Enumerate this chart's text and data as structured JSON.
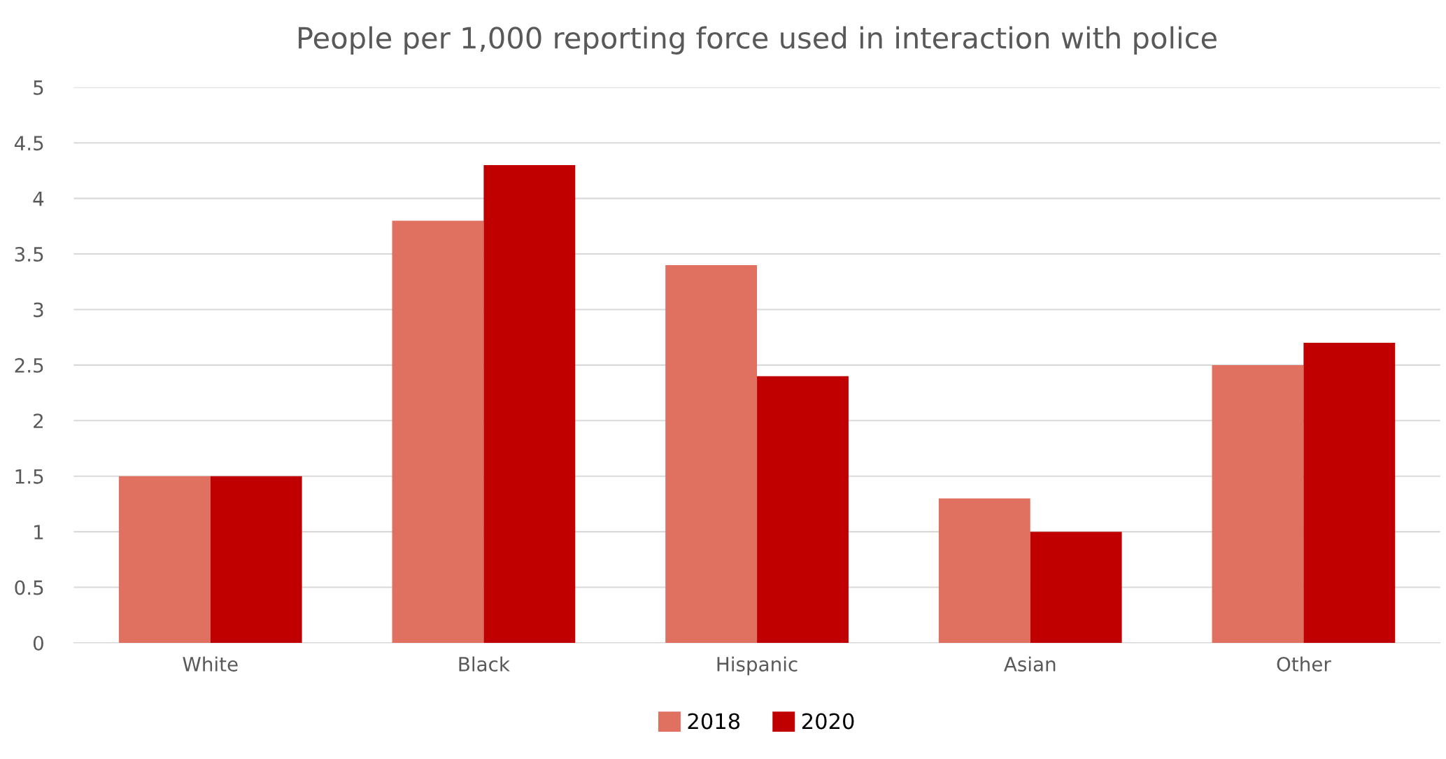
{
  "chart_data": {
    "type": "bar",
    "title": "People per 1,000 reporting force used in interaction with police",
    "categories": [
      "White",
      "Black",
      "Hispanic",
      "Asian",
      "Other"
    ],
    "series": [
      {
        "name": "2018",
        "color": "#e07060",
        "values": [
          1.5,
          3.8,
          3.4,
          1.3,
          2.5
        ]
      },
      {
        "name": "2020",
        "color": "#c00000",
        "values": [
          1.5,
          4.3,
          2.4,
          1.0,
          2.7
        ]
      }
    ],
    "ylim": [
      0,
      5
    ],
    "yticks": [
      0,
      0.5,
      1,
      1.5,
      2,
      2.5,
      3,
      3.5,
      4,
      4.5,
      5
    ],
    "grid": "y",
    "legend": "bottom"
  }
}
